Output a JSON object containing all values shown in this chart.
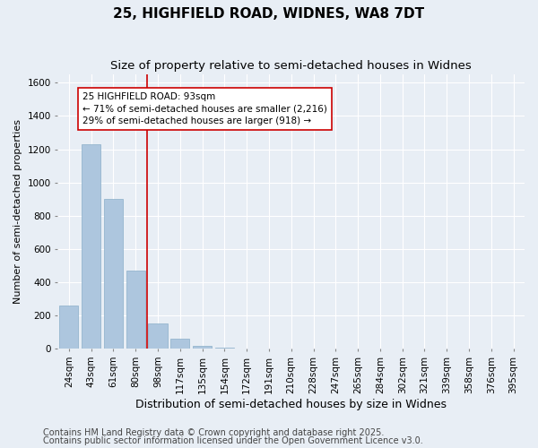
{
  "title_line1": "25, HIGHFIELD ROAD, WIDNES, WA8 7DT",
  "title_line2": "Size of property relative to semi-detached houses in Widnes",
  "xlabel": "Distribution of semi-detached houses by size in Widnes",
  "ylabel": "Number of semi-detached properties",
  "categories": [
    "24sqm",
    "43sqm",
    "61sqm",
    "80sqm",
    "98sqm",
    "117sqm",
    "135sqm",
    "154sqm",
    "172sqm",
    "191sqm",
    "210sqm",
    "228sqm",
    "247sqm",
    "265sqm",
    "284sqm",
    "302sqm",
    "321sqm",
    "339sqm",
    "358sqm",
    "376sqm",
    "395sqm"
  ],
  "values": [
    260,
    1230,
    900,
    470,
    150,
    60,
    15,
    5,
    2,
    1,
    0,
    0,
    0,
    0,
    0,
    0,
    0,
    0,
    0,
    0,
    0
  ],
  "bar_color": "#adc6de",
  "bar_edge_color": "#8aafc8",
  "background_color": "#e8eef5",
  "grid_color": "#ffffff",
  "vline_x": 3.5,
  "vline_color": "#cc0000",
  "annotation_text": "25 HIGHFIELD ROAD: 93sqm\n← 71% of semi-detached houses are smaller (2,216)\n29% of semi-detached houses are larger (918) →",
  "annotation_box_facecolor": "#ffffff",
  "annotation_box_edgecolor": "#cc0000",
  "ylim": [
    0,
    1650
  ],
  "yticks": [
    0,
    200,
    400,
    600,
    800,
    1000,
    1200,
    1400,
    1600
  ],
  "footer_line1": "Contains HM Land Registry data © Crown copyright and database right 2025.",
  "footer_line2": "Contains public sector information licensed under the Open Government Licence v3.0.",
  "title_fontsize": 11,
  "subtitle_fontsize": 9.5,
  "xlabel_fontsize": 9,
  "ylabel_fontsize": 8,
  "tick_fontsize": 7.5,
  "annotation_fontsize": 7.5,
  "footer_fontsize": 7
}
